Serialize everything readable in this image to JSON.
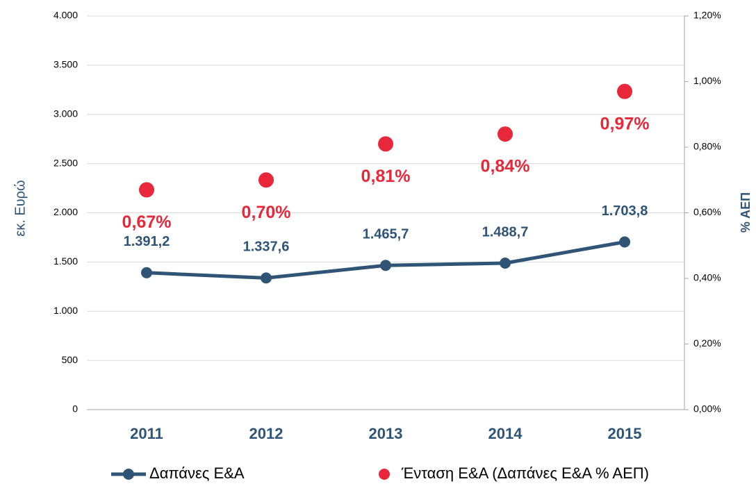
{
  "chart_data": {
    "type": "line",
    "categories": [
      "2011",
      "2012",
      "2013",
      "2014",
      "2015"
    ],
    "y_label": "εκ. Ευρώ",
    "y2_label": "% ΑΕΠ",
    "ylim": [
      0,
      4000
    ],
    "yticks": [
      0,
      {
        "value": 500,
        "label": "500"
      },
      {
        "value": 1000,
        "label": "1.000"
      },
      {
        "value": 1500,
        "label": "1.500"
      },
      {
        "value": 2000,
        "label": "2.000"
      },
      {
        "value": 2500,
        "label": "2.500"
      },
      {
        "value": 3000,
        "label": "3.000"
      },
      {
        "value": 3500,
        "label": "3.500"
      },
      {
        "value": 4000,
        "label": "4.000"
      }
    ],
    "y2lim": [
      0,
      1.2
    ],
    "y2ticks": [
      {
        "value": 0,
        "label": "0,00%"
      },
      {
        "value": 0.2,
        "label": "0,20%"
      },
      {
        "value": 0.4,
        "label": "0,40%"
      },
      {
        "value": 0.6,
        "label": "0,60%"
      },
      {
        "value": 0.8,
        "label": "0,80%"
      },
      {
        "value": 1.0,
        "label": "1,00%"
      },
      {
        "value": 1.2,
        "label": "1,20%"
      }
    ],
    "grid": true,
    "legend": "bottom",
    "series": [
      {
        "name": "Δαπάνες Ε&Α",
        "type": "line",
        "color": "#2f5475",
        "values": [
          1391.2,
          1337.6,
          1465.7,
          1488.7,
          1703.8
        ],
        "value_labels": [
          "1.391,2",
          "1.337,6",
          "1.465,7",
          "1.488,7",
          "1.703,8"
        ]
      },
      {
        "name": "Ένταση Ε&Α (Δαπάνες Ε&Α % ΑΕΠ)",
        "type": "scatter",
        "axis": "y2",
        "color": "#e8283a",
        "values": [
          0.67,
          0.7,
          0.81,
          0.84,
          0.97
        ],
        "value_labels": [
          "0,67%",
          "0,70%",
          "0,81%",
          "0,84%",
          "0,97%"
        ]
      }
    ]
  }
}
